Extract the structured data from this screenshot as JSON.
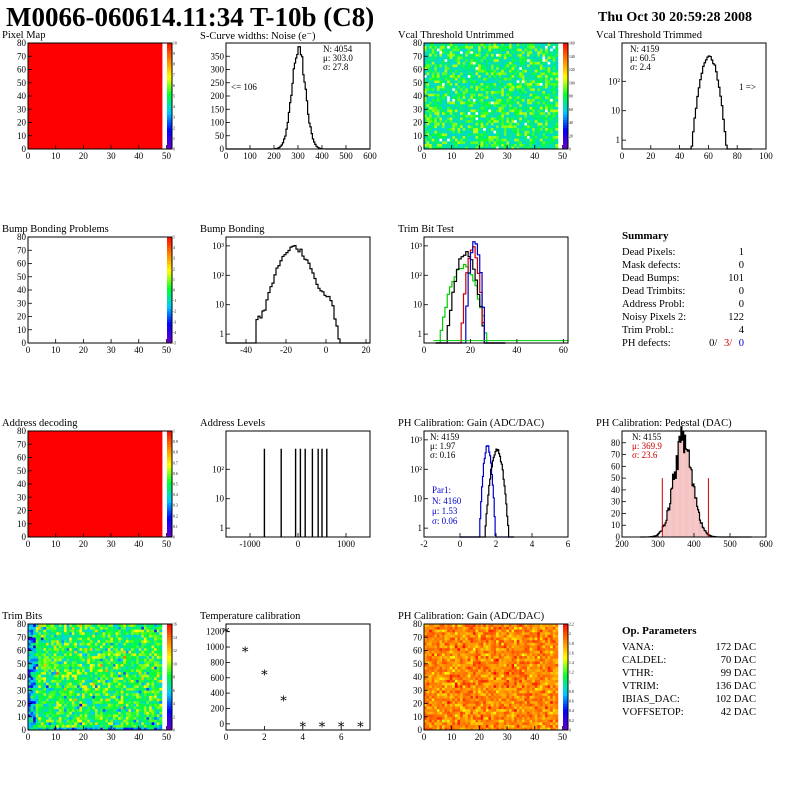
{
  "header": {
    "title": "M0066-060614.11:34 T-10b (C8)",
    "date": "Thu Oct 30 20:59:28 2008"
  },
  "colors": {
    "hist_line": "#000000",
    "pixel_map_fill": "#ff0000",
    "trim_red": "#cc0000",
    "trim_blue": "#0000cc",
    "trim_green": "#00cc00",
    "par1_blue": "#0000cc",
    "stats_red": "#cc0000"
  },
  "panels": [
    {
      "id": "pixel-map",
      "title": "Pixel Map"
    },
    {
      "id": "scurve",
      "title": "S-Curve widths: Noise (e⁻)"
    },
    {
      "id": "vcal-untrimmed",
      "title": "Vcal Threshold Untrimmed"
    },
    {
      "id": "vcal-trimmed",
      "title": "Vcal Threshold Trimmed"
    },
    {
      "id": "bump-problems",
      "title": "Bump Bonding Problems"
    },
    {
      "id": "bump-bonding",
      "title": "Bump Bonding"
    },
    {
      "id": "trim-bit-test",
      "title": "Trim Bit Test"
    },
    {
      "id": "address-decoding",
      "title": "Address decoding"
    },
    {
      "id": "address-levels",
      "title": "Address Levels"
    },
    {
      "id": "ph-gain",
      "title": "PH Calibration: Gain (ADC/DAC)"
    },
    {
      "id": "ph-pedestal",
      "title": "PH Calibration: Pedestal (DAC)"
    },
    {
      "id": "trim-bits",
      "title": "Trim Bits"
    },
    {
      "id": "temperature",
      "title": "Temperature calibration"
    },
    {
      "id": "ph-gain-map",
      "title": "PH Calibration: Gain (ADC/DAC)"
    }
  ],
  "annotations": {
    "scurve": {
      "n": "N: 4054",
      "mu": "μ: 303.0",
      "sigma": "σ: 27.8",
      "underflow": "<= 106"
    },
    "vcal_trimmed": {
      "n": "N: 4159",
      "mu": "μ: 60.5",
      "sigma": "σ: 2.4",
      "overflow": "1 =>"
    },
    "ph_gain": {
      "n": "N: 4159",
      "mu": "μ: 1.97",
      "sigma": "σ: 0.16",
      "par1": "Par1:",
      "par1_n": "N: 4160",
      "par1_mu": "μ: 1.53",
      "par1_sigma": "σ: 0.06"
    },
    "ph_pedestal": {
      "n": "N: 4155",
      "mu": "μ: 369.9",
      "sigma": "σ: 23.6"
    }
  },
  "summary": {
    "title": "Summary",
    "rows": [
      {
        "label": "Dead Pixels:",
        "value": "1"
      },
      {
        "label": "Mask defects:",
        "value": "0"
      },
      {
        "label": "Dead Bumps:",
        "value": "101"
      },
      {
        "label": "Dead Trimbits:",
        "value": "0"
      },
      {
        "label": "Address Probl:",
        "value": "0"
      },
      {
        "label": "Noisy Pixels 2:",
        "value": "122"
      },
      {
        "label": "Trim Probl.:",
        "value": "4"
      }
    ],
    "ph_defects": {
      "label": "PH defects:",
      "v1": "0/",
      "v2": "3/",
      "v3": "0"
    }
  },
  "op_params": {
    "title": "Op. Parameters",
    "rows": [
      {
        "label": "VANA:",
        "value": "172 DAC"
      },
      {
        "label": "CALDEL:",
        "value": "70 DAC"
      },
      {
        "label": "VTHR:",
        "value": "99 DAC"
      },
      {
        "label": "VTRIM:",
        "value": "136 DAC"
      },
      {
        "label": "IBIAS_DAC:",
        "value": "102 DAC"
      },
      {
        "label": "VOFFSETOP:",
        "value": "42 DAC"
      }
    ]
  },
  "chart_data": [
    {
      "id": "pixel-map",
      "type": "heatmap",
      "x_ticks": [
        "0",
        "10",
        "20",
        "30",
        "40",
        "50"
      ],
      "y_ticks": [
        "0",
        "10",
        "20",
        "30",
        "40",
        "50",
        "60",
        "70",
        "80"
      ],
      "xlim": [
        0,
        52
      ],
      "ylim": [
        0,
        80
      ],
      "colorbar_ticks": [
        "0",
        "1",
        "2",
        "3",
        "4",
        "5",
        "6",
        "7",
        "8",
        "9",
        "10"
      ],
      "uniform_value": 10
    },
    {
      "id": "scurve",
      "type": "histogram",
      "x_ticks": [
        "0",
        "100",
        "200",
        "300",
        "400",
        "500",
        "600"
      ],
      "y_ticks": [
        "0",
        "50",
        "100",
        "150",
        "200",
        "250",
        "300",
        "350"
      ],
      "xlim": [
        0,
        600
      ],
      "ylim": [
        0,
        400
      ],
      "peak": {
        "mean": 303.0,
        "sigma": 27.8,
        "max": 380
      }
    },
    {
      "id": "vcal-untrimmed",
      "type": "heatmap",
      "x_ticks": [
        "0",
        "10",
        "20",
        "30",
        "40",
        "50"
      ],
      "y_ticks": [
        "0",
        "10",
        "20",
        "30",
        "40",
        "50",
        "60",
        "70",
        "80"
      ],
      "xlim": [
        0,
        52
      ],
      "ylim": [
        0,
        80
      ],
      "colorbar_ticks": [
        "0",
        "20",
        "40",
        "60",
        "80",
        "100",
        "120",
        "140",
        "160"
      ]
    },
    {
      "id": "vcal-trimmed",
      "type": "histogram",
      "log_y": true,
      "x_ticks": [
        "0",
        "20",
        "40",
        "60",
        "80",
        "100"
      ],
      "y_ticks": [
        "1",
        "10",
        "10²"
      ],
      "xlim": [
        0,
        100
      ],
      "peak": {
        "mean": 60.5,
        "sigma": 2.4,
        "max": 700
      }
    },
    {
      "id": "bump-problems",
      "type": "heatmap",
      "x_ticks": [
        "0",
        "10",
        "20",
        "30",
        "40",
        "50"
      ],
      "y_ticks": [
        "0",
        "10",
        "20",
        "30",
        "40",
        "50",
        "60",
        "70",
        "80"
      ],
      "xlim": [
        0,
        52
      ],
      "ylim": [
        0,
        80
      ],
      "colorbar_ticks": [
        "-5",
        "-4",
        "-3",
        "-2",
        "-1",
        "0",
        "1",
        "2",
        "3",
        "4",
        "5"
      ]
    },
    {
      "id": "bump-bonding",
      "type": "histogram",
      "log_y": true,
      "x_ticks": [
        "-40",
        "-20",
        "0",
        "20"
      ],
      "y_ticks": [
        "1",
        "10",
        "10²",
        "10³"
      ],
      "xlim": [
        -50,
        22
      ]
    },
    {
      "id": "trim-bit-test",
      "type": "histogram",
      "log_y": true,
      "x_ticks": [
        "0",
        "20",
        "40",
        "60"
      ],
      "y_ticks": [
        "1",
        "10",
        "10²",
        "10³"
      ],
      "xlim": [
        0,
        62
      ],
      "series": [
        {
          "color": "green"
        },
        {
          "color": "black"
        },
        {
          "color": "red"
        },
        {
          "color": "blue"
        }
      ]
    },
    {
      "id": "address-decoding",
      "type": "heatmap",
      "x_ticks": [
        "0",
        "10",
        "20",
        "30",
        "40",
        "50"
      ],
      "y_ticks": [
        "0",
        "10",
        "20",
        "30",
        "40",
        "50",
        "60",
        "70",
        "80"
      ],
      "xlim": [
        0,
        52
      ],
      "ylim": [
        0,
        80
      ],
      "colorbar_ticks": [
        "0",
        "0.1",
        "0.2",
        "0.3",
        "0.4",
        "0.5",
        "0.6",
        "0.7",
        "0.8",
        "0.9",
        "1"
      ],
      "uniform_value": 1
    },
    {
      "id": "address-levels",
      "type": "histogram",
      "log_y": true,
      "x_ticks": [
        "-1000",
        "0",
        "1000"
      ],
      "y_ticks": [
        "1",
        "10",
        "10²"
      ],
      "xlim": [
        -1500,
        1500
      ],
      "spikes": [
        -700,
        -350,
        -50,
        50,
        150,
        300,
        420,
        500,
        600
      ]
    },
    {
      "id": "ph-gain",
      "type": "histogram",
      "log_y": true,
      "x_ticks": [
        "-2",
        "0",
        "2",
        "4",
        "6"
      ],
      "y_ticks": [
        "1",
        "10",
        "10²",
        "10³"
      ],
      "xlim": [
        -2,
        6
      ],
      "series": [
        {
          "color": "black",
          "mean": 1.97,
          "sigma": 0.16
        },
        {
          "color": "blue",
          "mean": 1.53,
          "sigma": 0.06
        }
      ]
    },
    {
      "id": "ph-pedestal",
      "type": "histogram",
      "x_ticks": [
        "200",
        "300",
        "400",
        "500",
        "600"
      ],
      "y_ticks": [
        "0",
        "10",
        "20",
        "30",
        "40",
        "50",
        "60",
        "70",
        "80"
      ],
      "xlim": [
        200,
        600
      ],
      "ylim": [
        0,
        90
      ],
      "peak": {
        "mean": 369.9,
        "sigma": 23.6,
        "max": 82
      },
      "cut_lines": [
        312,
        440
      ]
    },
    {
      "id": "trim-bits",
      "type": "heatmap",
      "x_ticks": [
        "0",
        "10",
        "20",
        "30",
        "40",
        "50"
      ],
      "y_ticks": [
        "0",
        "10",
        "20",
        "30",
        "40",
        "50",
        "60",
        "70",
        "80"
      ],
      "xlim": [
        0,
        52
      ],
      "ylim": [
        0,
        80
      ],
      "colorbar_ticks": [
        "0",
        "2",
        "4",
        "6",
        "8",
        "10",
        "12",
        "14",
        "16"
      ]
    },
    {
      "id": "temperature",
      "type": "scatter",
      "x_ticks": [
        "0",
        "2",
        "4",
        "6"
      ],
      "y_ticks": [
        "0",
        "200",
        "400",
        "600",
        "800",
        "1000",
        "1200"
      ],
      "xlim": [
        0,
        7.5
      ],
      "ylim": [
        -80,
        1300
      ],
      "x": [
        0,
        1,
        2,
        3,
        4,
        5,
        6,
        7
      ],
      "y": [
        1220,
        970,
        670,
        330,
        -10,
        -10,
        -10,
        -10
      ]
    },
    {
      "id": "ph-gain-map",
      "type": "heatmap",
      "x_ticks": [
        "0",
        "10",
        "20",
        "30",
        "40",
        "50"
      ],
      "y_ticks": [
        "0",
        "10",
        "20",
        "30",
        "40",
        "50",
        "60",
        "70",
        "80"
      ],
      "xlim": [
        0,
        52
      ],
      "ylim": [
        0,
        80
      ],
      "colorbar_ticks": [
        "0",
        "0.2",
        "0.4",
        "0.6",
        "0.8",
        "1",
        "1.2",
        "1.4",
        "1.6",
        "1.8",
        "2",
        "2.2"
      ]
    }
  ]
}
